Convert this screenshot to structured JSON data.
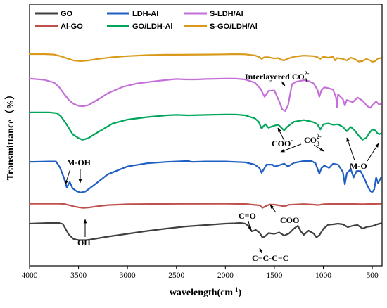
{
  "chart_data": {
    "type": "line",
    "xlabel_main": "wavelength(cm",
    "xlabel_sup": "-1",
    "xlabel_end": ")",
    "ylabel": "Transmittance（%）",
    "xlim": [
      4000,
      400
    ],
    "x_ticks": [
      "4000",
      "3500",
      "3000",
      "2500",
      "2000",
      "1500",
      "1000",
      "500"
    ],
    "x_tick_values": [
      4000,
      3500,
      3000,
      2500,
      2000,
      1500,
      1000,
      500
    ],
    "legend_position": "top-left",
    "series": [
      {
        "name": "GO",
        "color": "#404040",
        "offset": 0,
        "points": [
          [
            4000,
            0.84
          ],
          [
            3800,
            0.86
          ],
          [
            3700,
            0.86
          ],
          [
            3660,
            0.83
          ],
          [
            3600,
            0.53
          ],
          [
            3550,
            0.4
          ],
          [
            3500,
            0.37
          ],
          [
            3420,
            0.37
          ],
          [
            3350,
            0.4
          ],
          [
            3200,
            0.47
          ],
          [
            3000,
            0.55
          ],
          [
            2800,
            0.63
          ],
          [
            2600,
            0.7
          ],
          [
            2400,
            0.76
          ],
          [
            2200,
            0.8
          ],
          [
            2000,
            0.84
          ],
          [
            1900,
            0.85
          ],
          [
            1850,
            0.86
          ],
          [
            1800,
            0.84
          ],
          [
            1760,
            0.77
          ],
          [
            1730,
            0.62
          ],
          [
            1690,
            0.66
          ],
          [
            1650,
            0.58
          ],
          [
            1620,
            0.44
          ],
          [
            1590,
            0.49
          ],
          [
            1560,
            0.57
          ],
          [
            1500,
            0.55
          ],
          [
            1450,
            0.59
          ],
          [
            1400,
            0.5
          ],
          [
            1350,
            0.56
          ],
          [
            1300,
            0.7
          ],
          [
            1260,
            0.78
          ],
          [
            1230,
            0.62
          ],
          [
            1200,
            0.52
          ],
          [
            1150,
            0.64
          ],
          [
            1100,
            0.56
          ],
          [
            1070,
            0.45
          ],
          [
            1040,
            0.51
          ],
          [
            1000,
            0.69
          ],
          [
            950,
            0.81
          ],
          [
            900,
            0.82
          ],
          [
            850,
            0.84
          ],
          [
            800,
            0.82
          ],
          [
            750,
            0.74
          ],
          [
            700,
            0.78
          ],
          [
            650,
            0.8
          ],
          [
            600,
            0.7
          ],
          [
            550,
            0.75
          ],
          [
            500,
            0.77
          ],
          [
            450,
            0.82
          ],
          [
            410,
            0.85
          ]
        ]
      },
      {
        "name": "Al-GO",
        "color": "#c0504d",
        "offset": 0,
        "points": [
          [
            4000,
            0.52
          ],
          [
            3700,
            0.52
          ],
          [
            3650,
            0.5
          ],
          [
            3600,
            0.42
          ],
          [
            3550,
            0.33
          ],
          [
            3500,
            0.26
          ],
          [
            3450,
            0.22
          ],
          [
            3400,
            0.24
          ],
          [
            3300,
            0.34
          ],
          [
            3200,
            0.42
          ],
          [
            3000,
            0.48
          ],
          [
            2500,
            0.51
          ],
          [
            2000,
            0.52
          ],
          [
            1800,
            0.5
          ],
          [
            1700,
            0.43
          ],
          [
            1650,
            0.4
          ],
          [
            1620,
            0.22
          ],
          [
            1600,
            0.3
          ],
          [
            1550,
            0.46
          ],
          [
            1500,
            0.45
          ],
          [
            1450,
            0.4
          ],
          [
            1400,
            0.33
          ],
          [
            1350,
            0.44
          ],
          [
            1200,
            0.49
          ],
          [
            1100,
            0.45
          ],
          [
            1050,
            0.42
          ],
          [
            1000,
            0.48
          ],
          [
            900,
            0.5
          ],
          [
            700,
            0.5
          ],
          [
            600,
            0.48
          ],
          [
            500,
            0.5
          ],
          [
            410,
            0.52
          ]
        ]
      },
      {
        "name": "LDH-Al",
        "color": "#1f5fc4",
        "offset": 0,
        "points": [
          [
            4000,
            0.72
          ],
          [
            3800,
            0.73
          ],
          [
            3730,
            0.73
          ],
          [
            3690,
            0.6
          ],
          [
            3650,
            0.38
          ],
          [
            3620,
            0.16
          ],
          [
            3590,
            0.28
          ],
          [
            3560,
            0.14
          ],
          [
            3520,
            0.08
          ],
          [
            3480,
            0.05
          ],
          [
            3430,
            0.07
          ],
          [
            3350,
            0.2
          ],
          [
            3200,
            0.45
          ],
          [
            3000,
            0.62
          ],
          [
            2800,
            0.69
          ],
          [
            2600,
            0.72
          ],
          [
            2500,
            0.73
          ],
          [
            2380,
            0.74
          ],
          [
            2340,
            0.72
          ],
          [
            2200,
            0.73
          ],
          [
            2000,
            0.73
          ],
          [
            1800,
            0.71
          ],
          [
            1700,
            0.66
          ],
          [
            1650,
            0.58
          ],
          [
            1630,
            0.48
          ],
          [
            1610,
            0.55
          ],
          [
            1580,
            0.66
          ],
          [
            1520,
            0.66
          ],
          [
            1500,
            0.62
          ],
          [
            1460,
            0.64
          ],
          [
            1400,
            0.68
          ],
          [
            1360,
            0.62
          ],
          [
            1300,
            0.7
          ],
          [
            1200,
            0.74
          ],
          [
            1120,
            0.74
          ],
          [
            1080,
            0.69
          ],
          [
            1040,
            0.46
          ],
          [
            1020,
            0.58
          ],
          [
            990,
            0.64
          ],
          [
            940,
            0.59
          ],
          [
            900,
            0.68
          ],
          [
            850,
            0.66
          ],
          [
            800,
            0.5
          ],
          [
            780,
            0.23
          ],
          [
            760,
            0.47
          ],
          [
            720,
            0.56
          ],
          [
            690,
            0.38
          ],
          [
            660,
            0.52
          ],
          [
            620,
            0.52
          ],
          [
            580,
            0.35
          ],
          [
            550,
            0.2
          ],
          [
            520,
            0.08
          ],
          [
            500,
            0.06
          ],
          [
            480,
            0.12
          ],
          [
            460,
            0.38
          ],
          [
            440,
            0.25
          ],
          [
            425,
            0.32
          ],
          [
            410,
            0.38
          ]
        ]
      },
      {
        "name": "GO/LDH-Al",
        "color": "#00a55a",
        "offset": 0,
        "points": [
          [
            4000,
            0.84
          ],
          [
            3800,
            0.84
          ],
          [
            3720,
            0.82
          ],
          [
            3680,
            0.75
          ],
          [
            3620,
            0.55
          ],
          [
            3560,
            0.33
          ],
          [
            3500,
            0.24
          ],
          [
            3460,
            0.2
          ],
          [
            3400,
            0.24
          ],
          [
            3300,
            0.38
          ],
          [
            3150,
            0.58
          ],
          [
            3000,
            0.67
          ],
          [
            2800,
            0.73
          ],
          [
            2600,
            0.77
          ],
          [
            2500,
            0.78
          ],
          [
            2380,
            0.77
          ],
          [
            2200,
            0.78
          ],
          [
            2000,
            0.79
          ],
          [
            1900,
            0.79
          ],
          [
            1800,
            0.77
          ],
          [
            1700,
            0.7
          ],
          [
            1660,
            0.62
          ],
          [
            1630,
            0.46
          ],
          [
            1610,
            0.52
          ],
          [
            1590,
            0.56
          ],
          [
            1560,
            0.48
          ],
          [
            1500,
            0.53
          ],
          [
            1460,
            0.55
          ],
          [
            1400,
            0.42
          ],
          [
            1370,
            0.5
          ],
          [
            1300,
            0.62
          ],
          [
            1200,
            0.66
          ],
          [
            1150,
            0.64
          ],
          [
            1100,
            0.61
          ],
          [
            1060,
            0.56
          ],
          [
            1030,
            0.44
          ],
          [
            1000,
            0.56
          ],
          [
            950,
            0.58
          ],
          [
            900,
            0.55
          ],
          [
            850,
            0.56
          ],
          [
            800,
            0.5
          ],
          [
            760,
            0.4
          ],
          [
            720,
            0.5
          ],
          [
            680,
            0.42
          ],
          [
            640,
            0.3
          ],
          [
            600,
            0.2
          ],
          [
            560,
            0.25
          ],
          [
            530,
            0.36
          ],
          [
            500,
            0.44
          ],
          [
            470,
            0.42
          ],
          [
            450,
            0.36
          ],
          [
            430,
            0.33
          ],
          [
            410,
            0.35
          ]
        ]
      },
      {
        "name": "S-LDH/Al",
        "color": "#c46fd8",
        "offset": 0,
        "points": [
          [
            4000,
            0.86
          ],
          [
            3850,
            0.83
          ],
          [
            3750,
            0.76
          ],
          [
            3700,
            0.65
          ],
          [
            3650,
            0.48
          ],
          [
            3600,
            0.32
          ],
          [
            3550,
            0.22
          ],
          [
            3500,
            0.17
          ],
          [
            3450,
            0.16
          ],
          [
            3400,
            0.19
          ],
          [
            3300,
            0.33
          ],
          [
            3200,
            0.49
          ],
          [
            3050,
            0.65
          ],
          [
            2900,
            0.74
          ],
          [
            2700,
            0.8
          ],
          [
            2550,
            0.84
          ],
          [
            2500,
            0.85
          ],
          [
            2400,
            0.84
          ],
          [
            2300,
            0.84
          ],
          [
            2200,
            0.85
          ],
          [
            2000,
            0.86
          ],
          [
            1900,
            0.86
          ],
          [
            1800,
            0.84
          ],
          [
            1700,
            0.76
          ],
          [
            1640,
            0.6
          ],
          [
            1600,
            0.4
          ],
          [
            1560,
            0.55
          ],
          [
            1500,
            0.56
          ],
          [
            1450,
            0.28
          ],
          [
            1420,
            0.08
          ],
          [
            1390,
            0.04
          ],
          [
            1360,
            0.18
          ],
          [
            1320,
            0.72
          ],
          [
            1280,
            0.78
          ],
          [
            1200,
            0.82
          ],
          [
            1150,
            0.8
          ],
          [
            1100,
            0.74
          ],
          [
            1060,
            0.58
          ],
          [
            1040,
            0.4
          ],
          [
            1020,
            0.56
          ],
          [
            990,
            0.64
          ],
          [
            950,
            0.62
          ],
          [
            900,
            0.58
          ],
          [
            870,
            0.38
          ],
          [
            860,
            0.14
          ],
          [
            850,
            0.46
          ],
          [
            800,
            0.34
          ],
          [
            780,
            0.18
          ],
          [
            760,
            0.32
          ],
          [
            700,
            0.26
          ],
          [
            650,
            0.38
          ],
          [
            600,
            0.3
          ],
          [
            550,
            0.16
          ],
          [
            520,
            0.12
          ],
          [
            500,
            0.18
          ],
          [
            460,
            0.28
          ],
          [
            430,
            0.2
          ],
          [
            410,
            0.22
          ]
        ]
      },
      {
        "name": "S-GO/LDH/Al",
        "color": "#d99a1c",
        "offset": 0,
        "points": [
          [
            4000,
            0.84
          ],
          [
            3850,
            0.84
          ],
          [
            3750,
            0.82
          ],
          [
            3680,
            0.74
          ],
          [
            3600,
            0.62
          ],
          [
            3550,
            0.55
          ],
          [
            3480,
            0.52
          ],
          [
            3400,
            0.55
          ],
          [
            3300,
            0.62
          ],
          [
            3150,
            0.7
          ],
          [
            3000,
            0.75
          ],
          [
            2800,
            0.79
          ],
          [
            2600,
            0.81
          ],
          [
            2500,
            0.81
          ],
          [
            2200,
            0.82
          ],
          [
            2000,
            0.83
          ],
          [
            1900,
            0.84
          ],
          [
            1800,
            0.83
          ],
          [
            1700,
            0.78
          ],
          [
            1650,
            0.7
          ],
          [
            1630,
            0.62
          ],
          [
            1600,
            0.7
          ],
          [
            1560,
            0.7
          ],
          [
            1500,
            0.64
          ],
          [
            1460,
            0.66
          ],
          [
            1430,
            0.58
          ],
          [
            1400,
            0.55
          ],
          [
            1370,
            0.62
          ],
          [
            1300,
            0.72
          ],
          [
            1200,
            0.77
          ],
          [
            1100,
            0.75
          ],
          [
            1060,
            0.7
          ],
          [
            1030,
            0.62
          ],
          [
            1000,
            0.72
          ],
          [
            950,
            0.68
          ],
          [
            900,
            0.72
          ],
          [
            880,
            0.55
          ],
          [
            860,
            0.66
          ],
          [
            800,
            0.62
          ],
          [
            760,
            0.55
          ],
          [
            720,
            0.68
          ],
          [
            680,
            0.62
          ],
          [
            640,
            0.5
          ],
          [
            600,
            0.52
          ],
          [
            560,
            0.62
          ],
          [
            520,
            0.55
          ],
          [
            500,
            0.48
          ],
          [
            470,
            0.52
          ],
          [
            440,
            0.64
          ],
          [
            410,
            0.66
          ]
        ]
      }
    ],
    "annotations": [
      {
        "id": "interlayered",
        "text": "Interlayered CO",
        "sub": "3",
        "sup": "2-"
      },
      {
        "id": "coo1",
        "text": "COO",
        "sup": "-"
      },
      {
        "id": "co3",
        "text": "CO",
        "sub": "3",
        "sup": "2-"
      },
      {
        "id": "mo",
        "text": "M-O"
      },
      {
        "id": "moh",
        "text": "M-OH"
      },
      {
        "id": "oh",
        "text": "OH"
      },
      {
        "id": "co",
        "text": "C=O"
      },
      {
        "id": "coo2",
        "text": "COO",
        "sup": "-"
      },
      {
        "id": "cccc",
        "text": "C=C-C=C"
      }
    ]
  }
}
